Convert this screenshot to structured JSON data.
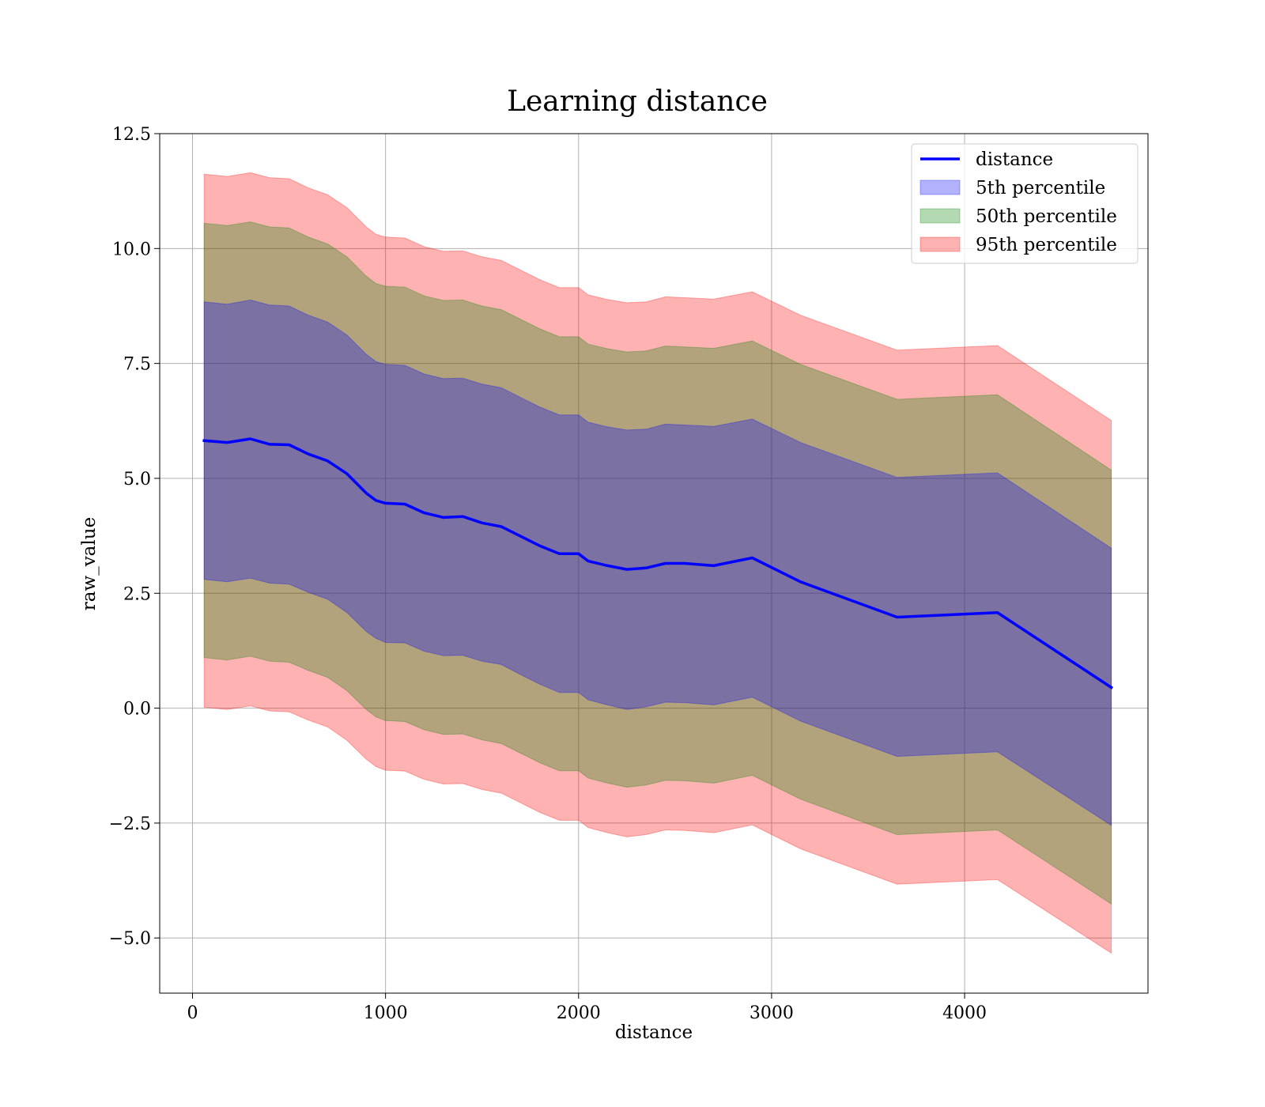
{
  "chart_data": {
    "type": "line",
    "title": "Learning distance",
    "xlabel": "distance",
    "ylabel": "raw_value",
    "xlim": [
      -170,
      4950
    ],
    "ylim": [
      -6.2,
      12.5
    ],
    "xticks": [
      0,
      1000,
      2000,
      3000,
      4000
    ],
    "xtick_labels": [
      "0",
      "1000",
      "2000",
      "3000",
      "4000"
    ],
    "yticks": [
      -5.0,
      -2.5,
      0.0,
      2.5,
      5.0,
      7.5,
      10.0,
      12.5
    ],
    "ytick_labels": [
      "−5.0",
      "−2.5",
      "0.0",
      "2.5",
      "5.0",
      "7.5",
      "10.0",
      "12.5"
    ],
    "grid": true,
    "legend_position": "top-right",
    "x": [
      60,
      180,
      300,
      400,
      500,
      600,
      700,
      800,
      900,
      950,
      1000,
      1100,
      1200,
      1300,
      1400,
      1500,
      1600,
      1700,
      1800,
      1900,
      2000,
      2050,
      2150,
      2250,
      2350,
      2450,
      2550,
      2700,
      2900,
      3150,
      3650,
      4170,
      4760
    ],
    "series": [
      {
        "name": "distance",
        "kind": "line",
        "color": "#0000ff",
        "values": [
          5.82,
          5.78,
          5.86,
          5.74,
          5.73,
          5.53,
          5.38,
          5.1,
          4.68,
          4.52,
          4.46,
          4.44,
          4.25,
          4.15,
          4.17,
          4.03,
          3.95,
          3.74,
          3.53,
          3.36,
          3.36,
          3.2,
          3.1,
          3.02,
          3.05,
          3.15,
          3.15,
          3.1,
          3.27,
          2.75,
          1.98,
          2.08,
          0.45
        ]
      },
      {
        "name": "5th percentile",
        "kind": "band",
        "color": "#0000ff",
        "lower": [
          2.8,
          2.75,
          2.83,
          2.72,
          2.7,
          2.52,
          2.37,
          2.08,
          1.67,
          1.52,
          1.43,
          1.42,
          1.24,
          1.14,
          1.15,
          1.02,
          0.95,
          0.73,
          0.52,
          0.34,
          0.34,
          0.18,
          0.07,
          -0.03,
          0.03,
          0.13,
          0.12,
          0.07,
          0.24,
          -0.28,
          -1.05,
          -0.95,
          -2.55
        ],
        "upper": [
          8.84,
          8.79,
          8.88,
          8.77,
          8.75,
          8.55,
          8.4,
          8.12,
          7.7,
          7.54,
          7.48,
          7.46,
          7.27,
          7.17,
          7.18,
          7.05,
          6.97,
          6.76,
          6.55,
          6.38,
          6.38,
          6.22,
          6.12,
          6.05,
          6.07,
          6.18,
          6.16,
          6.13,
          6.29,
          5.78,
          5.02,
          5.12,
          3.48
        ]
      },
      {
        "name": "50th percentile",
        "kind": "band",
        "color": "#008000",
        "lower": [
          1.1,
          1.05,
          1.13,
          1.02,
          1.0,
          0.82,
          0.67,
          0.38,
          -0.03,
          -0.19,
          -0.27,
          -0.29,
          -0.47,
          -0.57,
          -0.56,
          -0.69,
          -0.77,
          -0.98,
          -1.19,
          -1.36,
          -1.36,
          -1.52,
          -1.63,
          -1.72,
          -1.67,
          -1.57,
          -1.58,
          -1.63,
          -1.46,
          -1.98,
          -2.75,
          -2.65,
          -4.26
        ],
        "upper": [
          10.55,
          10.5,
          10.58,
          10.47,
          10.45,
          10.25,
          10.1,
          9.82,
          9.4,
          9.24,
          9.18,
          9.16,
          8.97,
          8.87,
          8.88,
          8.75,
          8.67,
          8.46,
          8.25,
          8.08,
          8.08,
          7.92,
          7.82,
          7.75,
          7.77,
          7.88,
          7.86,
          7.83,
          7.99,
          7.48,
          6.72,
          6.82,
          5.18
        ]
      },
      {
        "name": "95th percentile",
        "kind": "band",
        "color": "#ff0000",
        "lower": [
          0.02,
          -0.03,
          0.05,
          -0.06,
          -0.08,
          -0.26,
          -0.41,
          -0.7,
          -1.11,
          -1.27,
          -1.35,
          -1.37,
          -1.55,
          -1.65,
          -1.64,
          -1.77,
          -1.85,
          -2.06,
          -2.27,
          -2.44,
          -2.44,
          -2.6,
          -2.71,
          -2.8,
          -2.75,
          -2.65,
          -2.66,
          -2.71,
          -2.54,
          -3.06,
          -3.83,
          -3.73,
          -5.33
        ],
        "upper": [
          11.62,
          11.57,
          11.65,
          11.54,
          11.52,
          11.32,
          11.17,
          10.89,
          10.47,
          10.31,
          10.25,
          10.23,
          10.04,
          9.94,
          9.95,
          9.82,
          9.74,
          9.53,
          9.32,
          9.15,
          9.15,
          8.99,
          8.89,
          8.82,
          8.84,
          8.95,
          8.93,
          8.9,
          9.06,
          8.55,
          7.79,
          7.89,
          6.26
        ]
      }
    ]
  }
}
